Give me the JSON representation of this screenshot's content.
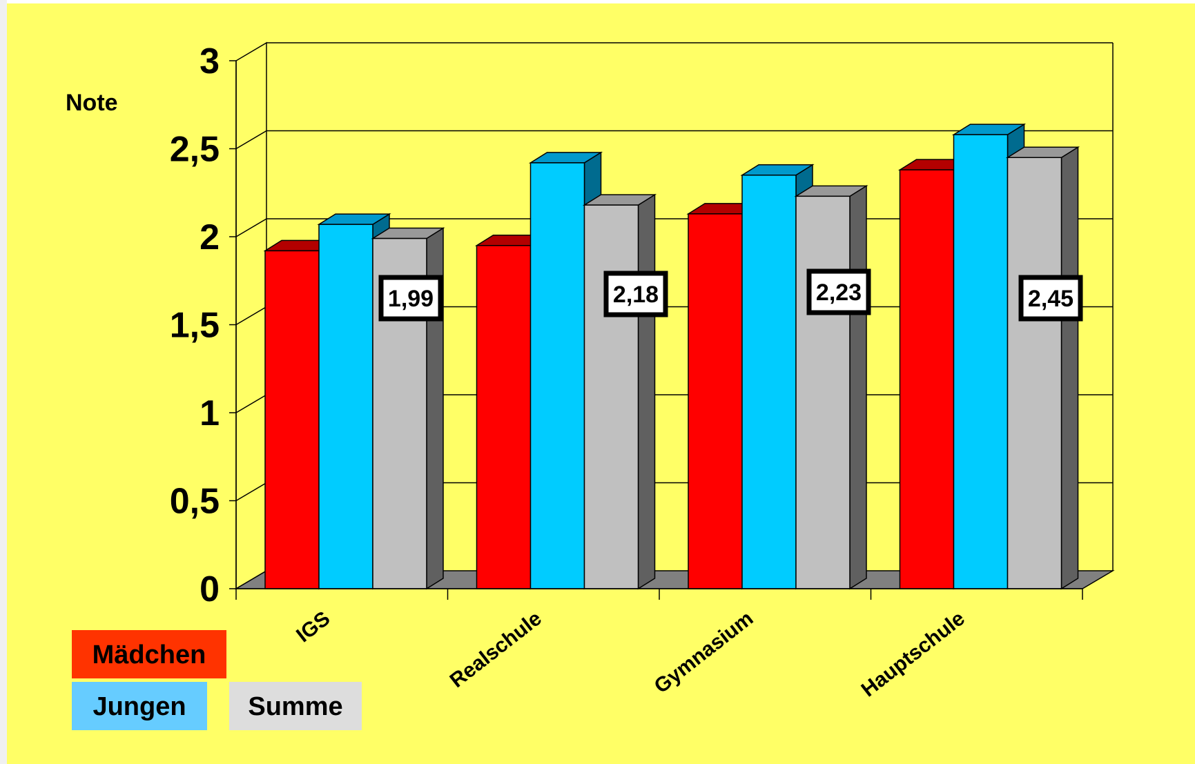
{
  "chart_data": {
    "type": "bar",
    "title": "",
    "xlabel": "",
    "ylabel": "Note",
    "ylim": [
      0,
      3
    ],
    "yticks": [
      "0",
      "0,5",
      "1",
      "1,5",
      "2",
      "2,5",
      "3"
    ],
    "categories": [
      "IGS",
      "Realschule",
      "Gymnasium",
      "Hauptschule"
    ],
    "series": [
      {
        "name": "Mädchen",
        "color": "#ff0000",
        "values": [
          1.92,
          1.95,
          2.13,
          2.38
        ]
      },
      {
        "name": "Jungen",
        "color": "#00ccff",
        "values": [
          2.07,
          2.42,
          2.35,
          2.58
        ]
      },
      {
        "name": "Summe",
        "color": "#c0c0c0",
        "values": [
          1.99,
          2.18,
          2.23,
          2.45
        ]
      }
    ],
    "data_labels": [
      "1,99",
      "2,18",
      "2,23",
      "2,45"
    ],
    "grid": true,
    "legend": "bottom-left",
    "background_color": "#ffff66",
    "floor_color": "#808080"
  }
}
